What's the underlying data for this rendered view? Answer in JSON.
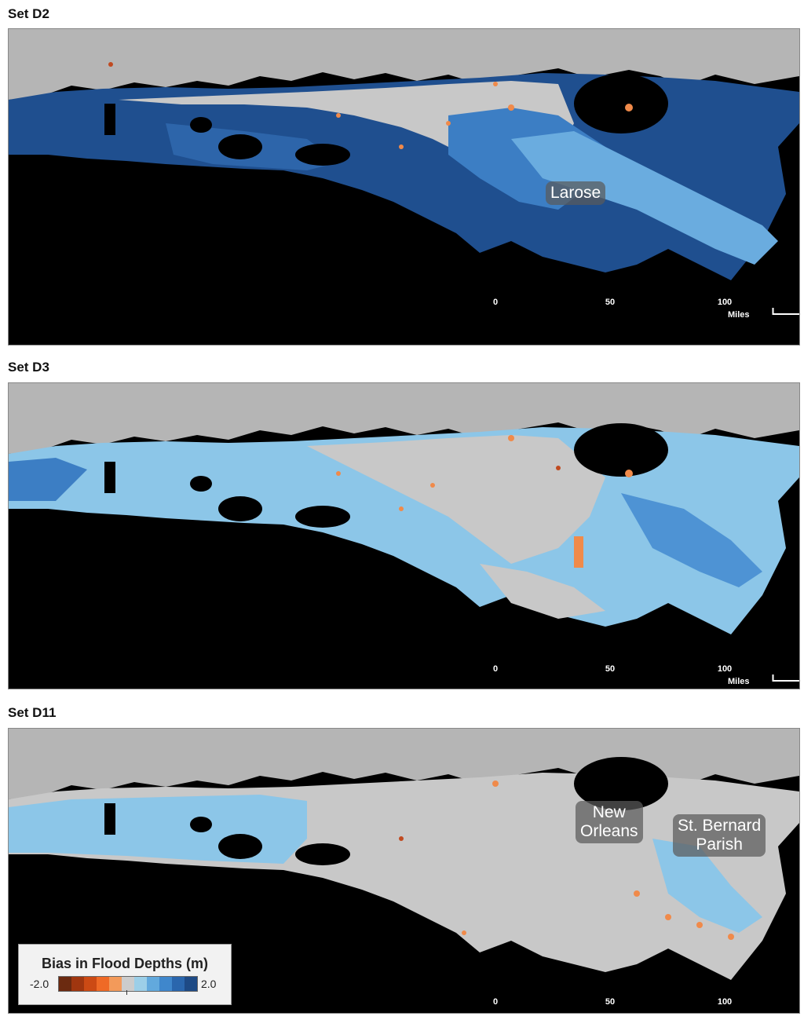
{
  "panels": [
    {
      "title": "Set D2",
      "labels": [
        "Larose"
      ],
      "scalebar": [
        "0",
        "50",
        "100"
      ],
      "units": "Miles"
    },
    {
      "title": "Set D3",
      "labels": [],
      "scalebar": [
        "0",
        "50",
        "100"
      ],
      "units": "Miles"
    },
    {
      "title": "Set D11",
      "labels": [
        "New Orleans",
        "St. Bernard Parish"
      ],
      "scalebar": [
        "0",
        "50",
        "100"
      ],
      "units": ""
    }
  ],
  "labels": {
    "larose": "Larose",
    "new_orleans_1": "New",
    "new_orleans_2": "Orleans",
    "st_bernard_1": "St. Bernard",
    "st_bernard_2": "Parish"
  },
  "legend": {
    "title": "Bias in Flood Depths (m)",
    "min": "-2.0",
    "max": "2.0",
    "colors": [
      "#6b2a10",
      "#a0360f",
      "#cc4a14",
      "#ef6a26",
      "#f39a5a",
      "#cccccc",
      "#9ccfe8",
      "#62a9dd",
      "#3f87cc",
      "#2a66ad",
      "#1e4a85"
    ]
  },
  "colors": {
    "land": "#b9b9b9",
    "water": "#000000",
    "strong_overestimate": "#2f6db3",
    "moderate_overestimate": "#4e93d4",
    "light_overestimate": "#8cc6e8",
    "neutral": "#c8c8c8",
    "underestimate": "#f08a4a"
  }
}
